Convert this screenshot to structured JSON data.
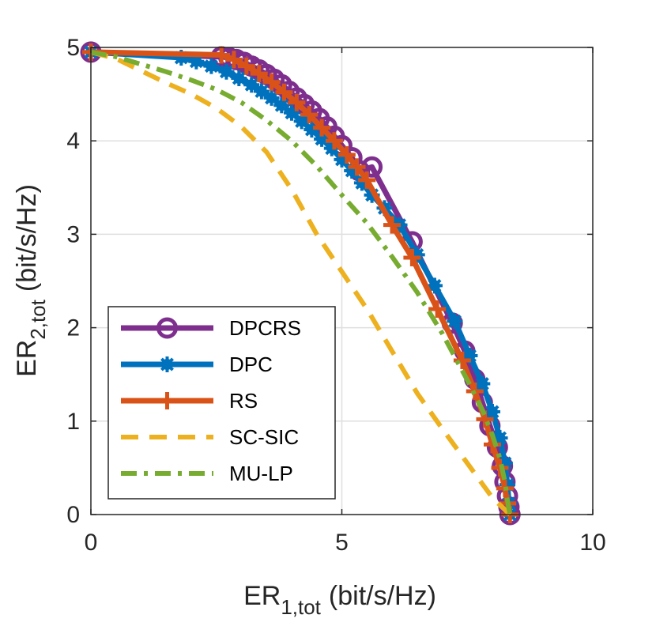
{
  "chart_data": {
    "type": "line",
    "title": "",
    "xlabel": {
      "main": "ER",
      "sub": "1,tot",
      "unit": "(bit/s/Hz)"
    },
    "ylabel": {
      "main": "ER",
      "sub": "2,tot",
      "unit": "(bit/s/Hz)"
    },
    "xlim": [
      0,
      10
    ],
    "ylim": [
      0,
      5
    ],
    "xticks": [
      0,
      5,
      10
    ],
    "yticks": [
      0,
      1,
      2,
      3,
      4,
      5
    ],
    "xtick_labels": [
      "0",
      "5",
      "10"
    ],
    "ytick_labels": [
      "0",
      "1",
      "2",
      "3",
      "4",
      "5"
    ],
    "grid": true,
    "legend_position": "bottom-left",
    "series": [
      {
        "name": "DPCRS",
        "color": "#7E2F8E",
        "style": "solid",
        "marker": "circle",
        "x": [
          0,
          2.6,
          2.75,
          2.9,
          3.05,
          3.2,
          3.35,
          3.5,
          3.65,
          3.8,
          3.95,
          4.1,
          4.25,
          4.4,
          4.55,
          4.7,
          4.85,
          5.0,
          5.2,
          5.35,
          5.6,
          6.4,
          7.2,
          7.45,
          7.65,
          7.8,
          7.95,
          8.1,
          8.2,
          8.25,
          8.3,
          8.33,
          8.35
        ],
        "y": [
          4.95,
          4.9,
          4.89,
          4.87,
          4.84,
          4.8,
          4.76,
          4.71,
          4.66,
          4.6,
          4.53,
          4.46,
          4.39,
          4.32,
          4.24,
          4.15,
          4.05,
          3.95,
          3.82,
          3.68,
          3.72,
          2.92,
          2.05,
          1.75,
          1.45,
          1.2,
          0.95,
          0.72,
          0.52,
          0.35,
          0.2,
          0.08,
          0.0
        ]
      },
      {
        "name": "DPC",
        "color": "#0072BD",
        "style": "solid",
        "marker": "star",
        "x": [
          0,
          1.8,
          2.1,
          2.4,
          2.7,
          2.95,
          3.2,
          3.4,
          3.6,
          3.8,
          4.0,
          4.2,
          4.4,
          4.6,
          4.8,
          5.0,
          5.2,
          5.4,
          5.6,
          5.85,
          6.15,
          6.5,
          6.85,
          7.25,
          7.55,
          7.8,
          8.0,
          8.15,
          8.25,
          8.3,
          8.33,
          8.35
        ],
        "y": [
          4.95,
          4.89,
          4.85,
          4.8,
          4.74,
          4.67,
          4.6,
          4.53,
          4.46,
          4.38,
          4.3,
          4.21,
          4.12,
          4.02,
          3.92,
          3.8,
          3.68,
          3.55,
          3.42,
          3.28,
          3.1,
          2.78,
          2.45,
          2.07,
          1.7,
          1.4,
          1.1,
          0.82,
          0.55,
          0.32,
          0.12,
          0.0
        ]
      },
      {
        "name": "RS",
        "color": "#D95319",
        "style": "solid",
        "marker": "plus",
        "x": [
          0,
          2.6,
          2.85,
          3.1,
          3.35,
          3.6,
          3.85,
          4.1,
          4.35,
          4.6,
          4.85,
          5.1,
          5.3,
          5.5,
          6.0,
          6.4,
          6.9,
          7.4,
          7.65,
          7.85,
          8.0,
          8.15,
          8.25,
          8.3,
          8.35
        ],
        "y": [
          4.95,
          4.92,
          4.87,
          4.8,
          4.72,
          4.63,
          4.52,
          4.41,
          4.28,
          4.14,
          4.0,
          3.85,
          3.72,
          3.58,
          3.1,
          2.75,
          2.2,
          1.65,
          1.32,
          1.02,
          0.75,
          0.5,
          0.28,
          0.12,
          0.0
        ]
      },
      {
        "name": "SC-SIC",
        "color": "#EDB120",
        "style": "dashed",
        "marker": "none",
        "x": [
          0,
          0.5,
          1.0,
          1.5,
          2.0,
          2.5,
          3.0,
          3.5,
          4.0,
          4.5,
          5.0,
          5.5,
          6.0,
          6.5,
          7.0,
          7.5,
          8.0,
          8.35
        ],
        "y": [
          4.95,
          4.88,
          4.75,
          4.62,
          4.5,
          4.35,
          4.15,
          3.88,
          3.48,
          3.0,
          2.6,
          2.2,
          1.75,
          1.3,
          0.92,
          0.55,
          0.18,
          0.0
        ]
      },
      {
        "name": "MU-LP",
        "color": "#77AC30",
        "style": "dashdot",
        "marker": "none",
        "x": [
          0,
          0.5,
          1.0,
          1.5,
          2.0,
          2.5,
          3.0,
          3.5,
          4.0,
          4.5,
          5.0,
          5.5,
          6.0,
          6.5,
          7.0,
          7.5,
          7.8,
          8.0,
          8.15,
          8.25,
          8.3,
          8.35
        ],
        "y": [
          4.95,
          4.9,
          4.82,
          4.74,
          4.65,
          4.55,
          4.41,
          4.22,
          4.0,
          3.73,
          3.42,
          3.12,
          2.76,
          2.38,
          1.94,
          1.44,
          1.12,
          0.85,
          0.6,
          0.35,
          0.15,
          0.0
        ]
      }
    ]
  }
}
